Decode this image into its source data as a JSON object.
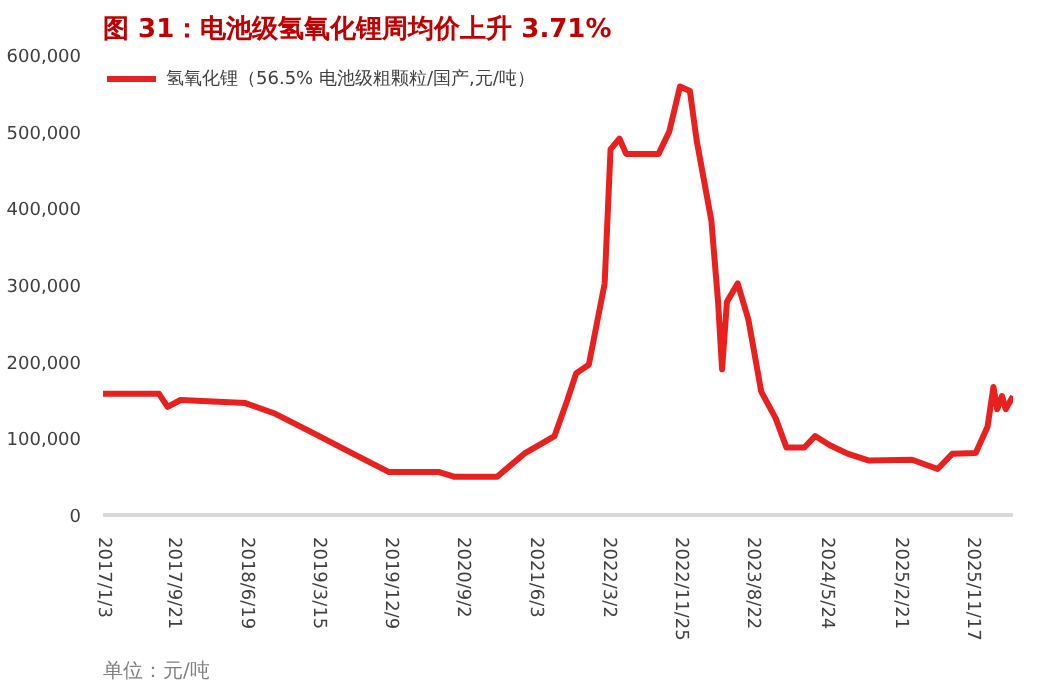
{
  "chart_data": {
    "type": "line",
    "title": "图 31：电池级氢氧化锂周均价上升 3.71%",
    "annotations": [
      "单位：元/吨"
    ],
    "legend": "top left",
    "x": [
      "2017-01-03",
      "2017-07-31",
      "2017-09-01",
      "2017-10-19",
      "2018-06-18",
      "2018-10-08",
      "2019-02-14",
      "2019-07-24",
      "2019-12-06",
      "2020-06-10",
      "2020-08-04",
      "2021-01-12",
      "2021-04-23",
      "2021-08-14",
      "2021-10-01",
      "2021-11-03",
      "2021-12-20",
      "2022-02-17",
      "2022-03-11",
      "2022-04-13",
      "2022-05-08",
      "2022-09-06",
      "2022-10-16",
      "2022-11-25",
      "2023-01-01",
      "2023-01-26",
      "2023-03-22",
      "2023-04-16",
      "2023-05-01",
      "2023-05-19",
      "2023-06-28",
      "2023-08-07",
      "2023-09-24",
      "2023-11-17",
      "2023-12-27",
      "2024-03-03",
      "2024-04-12",
      "2024-06-06",
      "2024-08-11",
      "2024-10-30",
      "2025-04-09",
      "2025-07-13",
      "2025-09-06",
      "2025-12-02",
      "2026-01-15",
      "2026-02-06",
      "2026-02-20",
      "2026-03-10",
      "2026-03-24",
      "2026-04-20"
    ],
    "series": [
      {
        "name": "氢氧化锂（56.5% 电池级粗颗粒/国产,元/吨）",
        "color": "#e8211f",
        "values": [
          158000,
          158000,
          141000,
          150000,
          146000,
          132000,
          109000,
          80000,
          56000,
          56000,
          50000,
          50000,
          80000,
          103000,
          150000,
          185000,
          196000,
          302000,
          477000,
          491000,
          471000,
          471000,
          500000,
          559000,
          553000,
          489000,
          384000,
          278000,
          190000,
          278000,
          302000,
          255000,
          161000,
          126000,
          88000,
          88000,
          103000,
          91000,
          80000,
          71000,
          72000,
          60000,
          80000,
          81000,
          115000,
          167000,
          138000,
          155000,
          138000,
          155000
        ]
      }
    ],
    "xlim": [
      "2017-01-03",
      "2026-04-20"
    ],
    "xticks": [
      {
        "value": "2017-01-03",
        "label": "2017/1/3"
      },
      {
        "value": "2017-09-21",
        "label": "2017/9/21"
      },
      {
        "value": "2018-06-19",
        "label": "2018/6/19"
      },
      {
        "value": "2019-03-15",
        "label": "2019/3/15"
      },
      {
        "value": "2019-12-09",
        "label": "2019/12/9"
      },
      {
        "value": "2020-09-02",
        "label": "2020/9/2"
      },
      {
        "value": "2021-06-03",
        "label": "2021/6/3"
      },
      {
        "value": "2022-03-02",
        "label": "2022/3/2"
      },
      {
        "value": "2022-11-25",
        "label": "2022/11/25"
      },
      {
        "value": "2023-08-22",
        "label": "2023/8/22"
      },
      {
        "value": "2024-05-24",
        "label": "2024/5/24"
      },
      {
        "value": "2025-02-21",
        "label": "2025/2/21"
      },
      {
        "value": "2025-11-17",
        "label": "2025/11/17"
      }
    ],
    "ylim": [
      0,
      600000
    ],
    "yticks": [
      {
        "value": 0,
        "label": "0"
      },
      {
        "value": 100000,
        "label": "100,000"
      },
      {
        "value": 200000,
        "label": "200,000"
      },
      {
        "value": 300000,
        "label": "300,000"
      },
      {
        "value": 400000,
        "label": "400,000"
      },
      {
        "value": 500000,
        "label": "500,000"
      },
      {
        "value": 600000,
        "label": "600,000"
      }
    ]
  }
}
